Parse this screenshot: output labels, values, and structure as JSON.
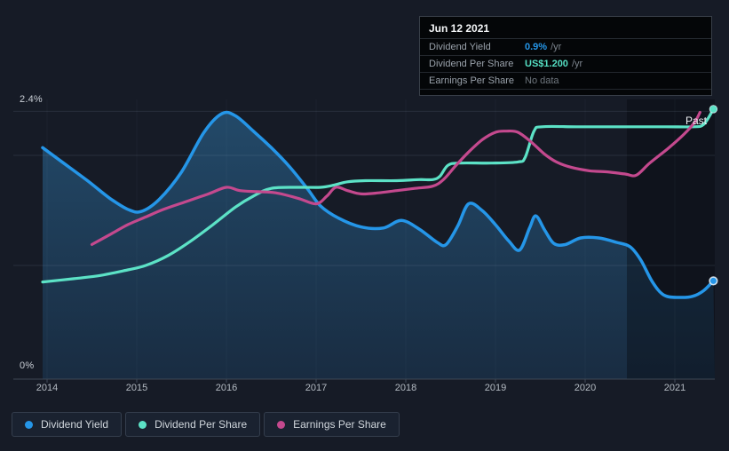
{
  "page": {
    "bg": "#161B26"
  },
  "tooltip": {
    "date": "Jun 12 2021",
    "rows": [
      {
        "label": "Dividend Yield",
        "value": "0.9%",
        "suffix": "/yr",
        "value_color": "#2596E8"
      },
      {
        "label": "Dividend Per Share",
        "value": "US$1.200",
        "suffix": "/yr",
        "value_color": "#55DFC3"
      },
      {
        "label": "Earnings Per Share",
        "value": "No data",
        "suffix": "",
        "value_color": "#70777F"
      }
    ]
  },
  "chart": {
    "past_label": "Past",
    "y_axis": {
      "top_label": "2.4%",
      "bottom_label": "0%"
    },
    "x_axis": {
      "labels": [
        "2014",
        "2015",
        "2016",
        "2017",
        "2018",
        "2019",
        "2020",
        "2021"
      ]
    }
  },
  "legend": [
    {
      "label": "Dividend Yield",
      "color": "#2596E8"
    },
    {
      "label": "Dividend Per Share",
      "color": "#5CE2C6"
    },
    {
      "label": "Earnings Per Share",
      "color": "#C4498E"
    }
  ],
  "chart_data": {
    "type": "line",
    "title": "Dividend history (yield, dividend per share, earnings per share)",
    "x_ticks": [
      2014,
      2015,
      2016,
      2017,
      2018,
      2019,
      2020,
      2021
    ],
    "x_range": [
      2013.95,
      2021.45
    ],
    "y_axis": {
      "min": 0,
      "max": 2.4,
      "unit": "%",
      "gridline_values": [
        2.4,
        2.0,
        1.0
      ],
      "grid": true
    },
    "highlight_band_x": [
      2020.47,
      2021.45
    ],
    "legend_position": "bottom-left",
    "series": [
      {
        "name": "Dividend Yield",
        "color": "#2596E8",
        "area": true,
        "end_dot": true,
        "points": [
          [
            2013.95,
            2.07
          ],
          [
            2014.15,
            1.95
          ],
          [
            2014.45,
            1.77
          ],
          [
            2014.7,
            1.61
          ],
          [
            2014.9,
            1.51
          ],
          [
            2015.05,
            1.49
          ],
          [
            2015.25,
            1.6
          ],
          [
            2015.5,
            1.85
          ],
          [
            2015.75,
            2.21
          ],
          [
            2015.95,
            2.38
          ],
          [
            2016.1,
            2.36
          ],
          [
            2016.3,
            2.22
          ],
          [
            2016.5,
            2.07
          ],
          [
            2016.7,
            1.9
          ],
          [
            2016.9,
            1.7
          ],
          [
            2017.05,
            1.54
          ],
          [
            2017.25,
            1.43
          ],
          [
            2017.5,
            1.35
          ],
          [
            2017.75,
            1.34
          ],
          [
            2017.95,
            1.41
          ],
          [
            2018.15,
            1.33
          ],
          [
            2018.35,
            1.21
          ],
          [
            2018.45,
            1.19
          ],
          [
            2018.58,
            1.36
          ],
          [
            2018.7,
            1.56
          ],
          [
            2018.85,
            1.5
          ],
          [
            2019.0,
            1.37
          ],
          [
            2019.15,
            1.22
          ],
          [
            2019.27,
            1.14
          ],
          [
            2019.38,
            1.34
          ],
          [
            2019.45,
            1.45
          ],
          [
            2019.55,
            1.32
          ],
          [
            2019.65,
            1.2
          ],
          [
            2019.78,
            1.19
          ],
          [
            2019.95,
            1.25
          ],
          [
            2020.15,
            1.25
          ],
          [
            2020.35,
            1.21
          ],
          [
            2020.5,
            1.17
          ],
          [
            2020.62,
            1.05
          ],
          [
            2020.75,
            0.85
          ],
          [
            2020.88,
            0.73
          ],
          [
            2021.05,
            0.71
          ],
          [
            2021.2,
            0.72
          ],
          [
            2021.32,
            0.77
          ],
          [
            2021.43,
            0.86
          ]
        ]
      },
      {
        "name": "Dividend Per Share",
        "color": "#5CE2C6",
        "area": false,
        "end_dot": true,
        "points": [
          [
            2013.95,
            0.85
          ],
          [
            2014.3,
            0.88
          ],
          [
            2014.6,
            0.91
          ],
          [
            2014.9,
            0.96
          ],
          [
            2015.1,
            1.0
          ],
          [
            2015.35,
            1.09
          ],
          [
            2015.6,
            1.22
          ],
          [
            2015.85,
            1.37
          ],
          [
            2016.1,
            1.53
          ],
          [
            2016.3,
            1.63
          ],
          [
            2016.5,
            1.7
          ],
          [
            2016.8,
            1.71
          ],
          [
            2017.05,
            1.71
          ],
          [
            2017.2,
            1.73
          ],
          [
            2017.35,
            1.76
          ],
          [
            2017.55,
            1.77
          ],
          [
            2017.9,
            1.77
          ],
          [
            2018.15,
            1.78
          ],
          [
            2018.3,
            1.78
          ],
          [
            2018.38,
            1.81
          ],
          [
            2018.47,
            1.91
          ],
          [
            2018.6,
            1.93
          ],
          [
            2018.95,
            1.93
          ],
          [
            2019.25,
            1.94
          ],
          [
            2019.33,
            1.98
          ],
          [
            2019.43,
            2.22
          ],
          [
            2019.52,
            2.26
          ],
          [
            2019.9,
            2.26
          ],
          [
            2020.4,
            2.26
          ],
          [
            2020.9,
            2.26
          ],
          [
            2021.2,
            2.26
          ],
          [
            2021.32,
            2.28
          ],
          [
            2021.43,
            2.42
          ]
        ]
      },
      {
        "name": "Earnings Per Share",
        "color": "#C4498E",
        "area": false,
        "end_dot": false,
        "points": [
          [
            2014.5,
            1.19
          ],
          [
            2014.7,
            1.28
          ],
          [
            2014.9,
            1.37
          ],
          [
            2015.1,
            1.44
          ],
          [
            2015.3,
            1.51
          ],
          [
            2015.55,
            1.58
          ],
          [
            2015.8,
            1.65
          ],
          [
            2016.0,
            1.71
          ],
          [
            2016.15,
            1.68
          ],
          [
            2016.35,
            1.67
          ],
          [
            2016.55,
            1.66
          ],
          [
            2016.8,
            1.61
          ],
          [
            2017.0,
            1.56
          ],
          [
            2017.12,
            1.63
          ],
          [
            2017.22,
            1.71
          ],
          [
            2017.35,
            1.68
          ],
          [
            2017.5,
            1.65
          ],
          [
            2017.7,
            1.66
          ],
          [
            2017.9,
            1.68
          ],
          [
            2018.1,
            1.7
          ],
          [
            2018.3,
            1.72
          ],
          [
            2018.42,
            1.78
          ],
          [
            2018.55,
            1.9
          ],
          [
            2018.7,
            2.03
          ],
          [
            2018.85,
            2.14
          ],
          [
            2019.0,
            2.21
          ],
          [
            2019.12,
            2.22
          ],
          [
            2019.25,
            2.21
          ],
          [
            2019.4,
            2.12
          ],
          [
            2019.55,
            2.01
          ],
          [
            2019.68,
            1.94
          ],
          [
            2019.85,
            1.89
          ],
          [
            2020.05,
            1.86
          ],
          [
            2020.25,
            1.85
          ],
          [
            2020.45,
            1.83
          ],
          [
            2020.57,
            1.82
          ],
          [
            2020.72,
            1.93
          ],
          [
            2020.92,
            2.06
          ],
          [
            2021.1,
            2.19
          ],
          [
            2021.22,
            2.3
          ],
          [
            2021.28,
            2.39
          ]
        ]
      }
    ]
  }
}
